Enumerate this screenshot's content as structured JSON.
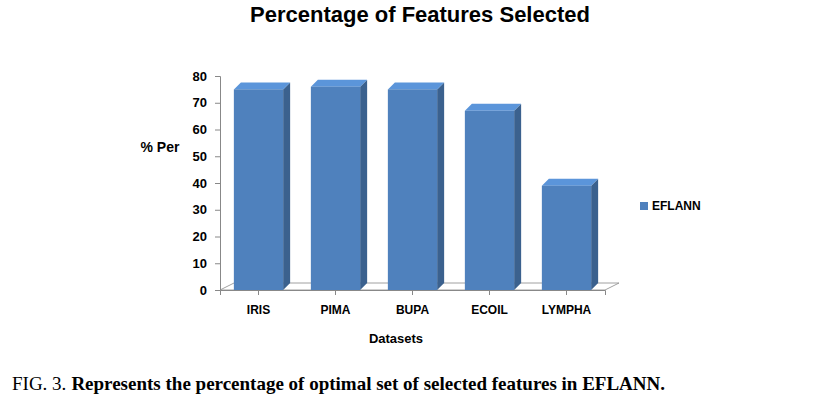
{
  "chart_data": {
    "type": "bar",
    "title": "Percentage of Features Selected",
    "x_label": "Datasets",
    "y_label": "% Per",
    "categories": [
      "IRIS",
      "PIMA",
      "BUPA",
      "ECOIL",
      "LYMPHA"
    ],
    "series": [
      {
        "name": "EFLANN",
        "color": "#4f81bd",
        "values": [
          75,
          76,
          75,
          67,
          39
        ]
      }
    ],
    "ylim": [
      0,
      80
    ],
    "yticks": [
      0,
      10,
      20,
      30,
      40,
      50,
      60,
      70,
      80
    ],
    "grid": false,
    "legend": "right",
    "caption_label": "FIG. 3.",
    "caption": "Represents the percentage of optimal set of selected features in EFLANN."
  }
}
